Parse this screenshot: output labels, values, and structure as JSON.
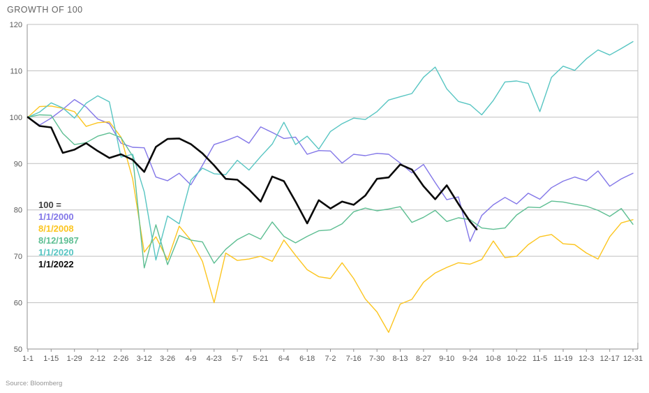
{
  "chart_data": {
    "type": "line",
    "title": "GROWTH OF 100",
    "source": "Source: Bloomberg",
    "legend_heading": "100 =",
    "legend_position": "middle-left",
    "grid": true,
    "ylim": [
      50,
      120
    ],
    "y_ticks": [
      50,
      60,
      70,
      80,
      90,
      100,
      110,
      120
    ],
    "x_tick_interval_days": 14,
    "x_range_days": [
      0,
      364
    ],
    "x_tick_labels": [
      "1-1",
      "1-15",
      "1-29",
      "2-12",
      "2-26",
      "3-12",
      "3-26",
      "4-9",
      "4-23",
      "5-7",
      "5-21",
      "6-4",
      "6-18",
      "7-2",
      "7-16",
      "7-30",
      "8-13",
      "8-27",
      "9-10",
      "9-24",
      "10-8",
      "10-22",
      "11-5",
      "11-19",
      "12-3",
      "12-17",
      "12-31"
    ],
    "series": [
      {
        "name": "1/1/2000",
        "color": "#8276e8",
        "line_width": 1.4,
        "sample_step_days": 7,
        "values": [
          100,
          98.3,
          99.8,
          101.7,
          103.8,
          102.2,
          99.6,
          98.6,
          94.4,
          93.5,
          93.4,
          87.1,
          86.3,
          87.9,
          85.4,
          89.6,
          94.1,
          94.9,
          95.9,
          94.4,
          97.9,
          96.7,
          95.4,
          95.7,
          92.0,
          92.8,
          92.7,
          90.1,
          92.0,
          91.7,
          92.2,
          92.0,
          90.1,
          88.0,
          89.8,
          85.9,
          82.2,
          82.8,
          73.2,
          78.8,
          81.1,
          82.7,
          81.3,
          83.6,
          82.3,
          84.8,
          86.2,
          87.1,
          86.3,
          88.4,
          85.1,
          86.7,
          87.9
        ]
      },
      {
        "name": "8/1/2008",
        "color": "#fcc51f",
        "line_width": 1.4,
        "sample_step_days": 7,
        "values": [
          100,
          102.3,
          102.4,
          101.9,
          101.2,
          98.0,
          98.8,
          99.0,
          95.7,
          86.7,
          70.9,
          74.2,
          69.2,
          76.5,
          73.5,
          68.9,
          60.0,
          70.7,
          69.1,
          69.4,
          70.0,
          68.9,
          73.5,
          70.2,
          67.1,
          65.6,
          65.2,
          68.6,
          65.2,
          60.8,
          58.0,
          53.6,
          59.7,
          60.7,
          64.4,
          66.4,
          67.6,
          68.6,
          68.3,
          69.3,
          73.3,
          69.7,
          70.0,
          72.5,
          74.2,
          74.7,
          72.7,
          72.5,
          70.7,
          69.4,
          74.2,
          77.2,
          77.9
        ]
      },
      {
        "name": "8/12/1987",
        "color": "#5dbe92",
        "line_width": 1.4,
        "sample_step_days": 7,
        "values": [
          100,
          100.5,
          100.4,
          96.5,
          94.1,
          94.5,
          95.9,
          96.6,
          95.6,
          91.6,
          67.5,
          76.8,
          68.2,
          74.5,
          73.5,
          73.1,
          68.5,
          71.5,
          73.6,
          74.9,
          73.7,
          77.4,
          74.3,
          72.9,
          74.3,
          75.5,
          75.7,
          77.0,
          79.6,
          80.4,
          79.8,
          80.2,
          80.7,
          77.3,
          78.4,
          79.9,
          77.5,
          78.3,
          77.9,
          76.1,
          75.8,
          76.1,
          78.9,
          80.6,
          80.5,
          81.9,
          81.7,
          81.2,
          80.8,
          79.9,
          78.6,
          80.3,
          76.9
        ]
      },
      {
        "name": "1/1/2020",
        "color": "#57c5c2",
        "line_width": 1.4,
        "sample_step_days": 7,
        "values": [
          100,
          101.1,
          103.1,
          102.0,
          99.8,
          103.0,
          104.6,
          103.3,
          91.4,
          92.0,
          83.9,
          69.2,
          78.7,
          77.0,
          86.4,
          89.0,
          87.8,
          87.6,
          90.7,
          88.6,
          91.5,
          94.2,
          98.9,
          94.1,
          95.9,
          93.1,
          96.9,
          98.6,
          99.8,
          99.5,
          101.2,
          103.7,
          104.4,
          105.1,
          108.6,
          110.8,
          106.1,
          103.4,
          102.7,
          100.5,
          103.6,
          107.6,
          107.8,
          107.3,
          101.2,
          108.6,
          111.0,
          110.1,
          112.6,
          114.5,
          113.4,
          114.8,
          116.3
        ]
      },
      {
        "name": "1/1/2022",
        "color": "#0a0a0a",
        "line_width": 2.6,
        "days": [
          0,
          7,
          14,
          21,
          28,
          35,
          42,
          49,
          56,
          63,
          70,
          77,
          84,
          91,
          98,
          105,
          112,
          119,
          126,
          133,
          140,
          147,
          154,
          161,
          168,
          175,
          182,
          189,
          196,
          203,
          210,
          217,
          224,
          231,
          238,
          245,
          252,
          259,
          266,
          270
        ],
        "values": [
          100,
          98.1,
          97.8,
          92.3,
          93.0,
          94.4,
          92.7,
          91.2,
          92.0,
          90.8,
          88.2,
          93.6,
          95.3,
          95.4,
          94.2,
          92.2,
          89.6,
          86.7,
          86.5,
          84.4,
          81.8,
          87.2,
          86.2,
          81.8,
          77.1,
          82.1,
          80.3,
          81.8,
          81.1,
          83.1,
          86.7,
          87.0,
          89.8,
          88.7,
          85.1,
          82.3,
          85.3,
          81.3,
          77.5,
          75.8
        ]
      }
    ]
  }
}
